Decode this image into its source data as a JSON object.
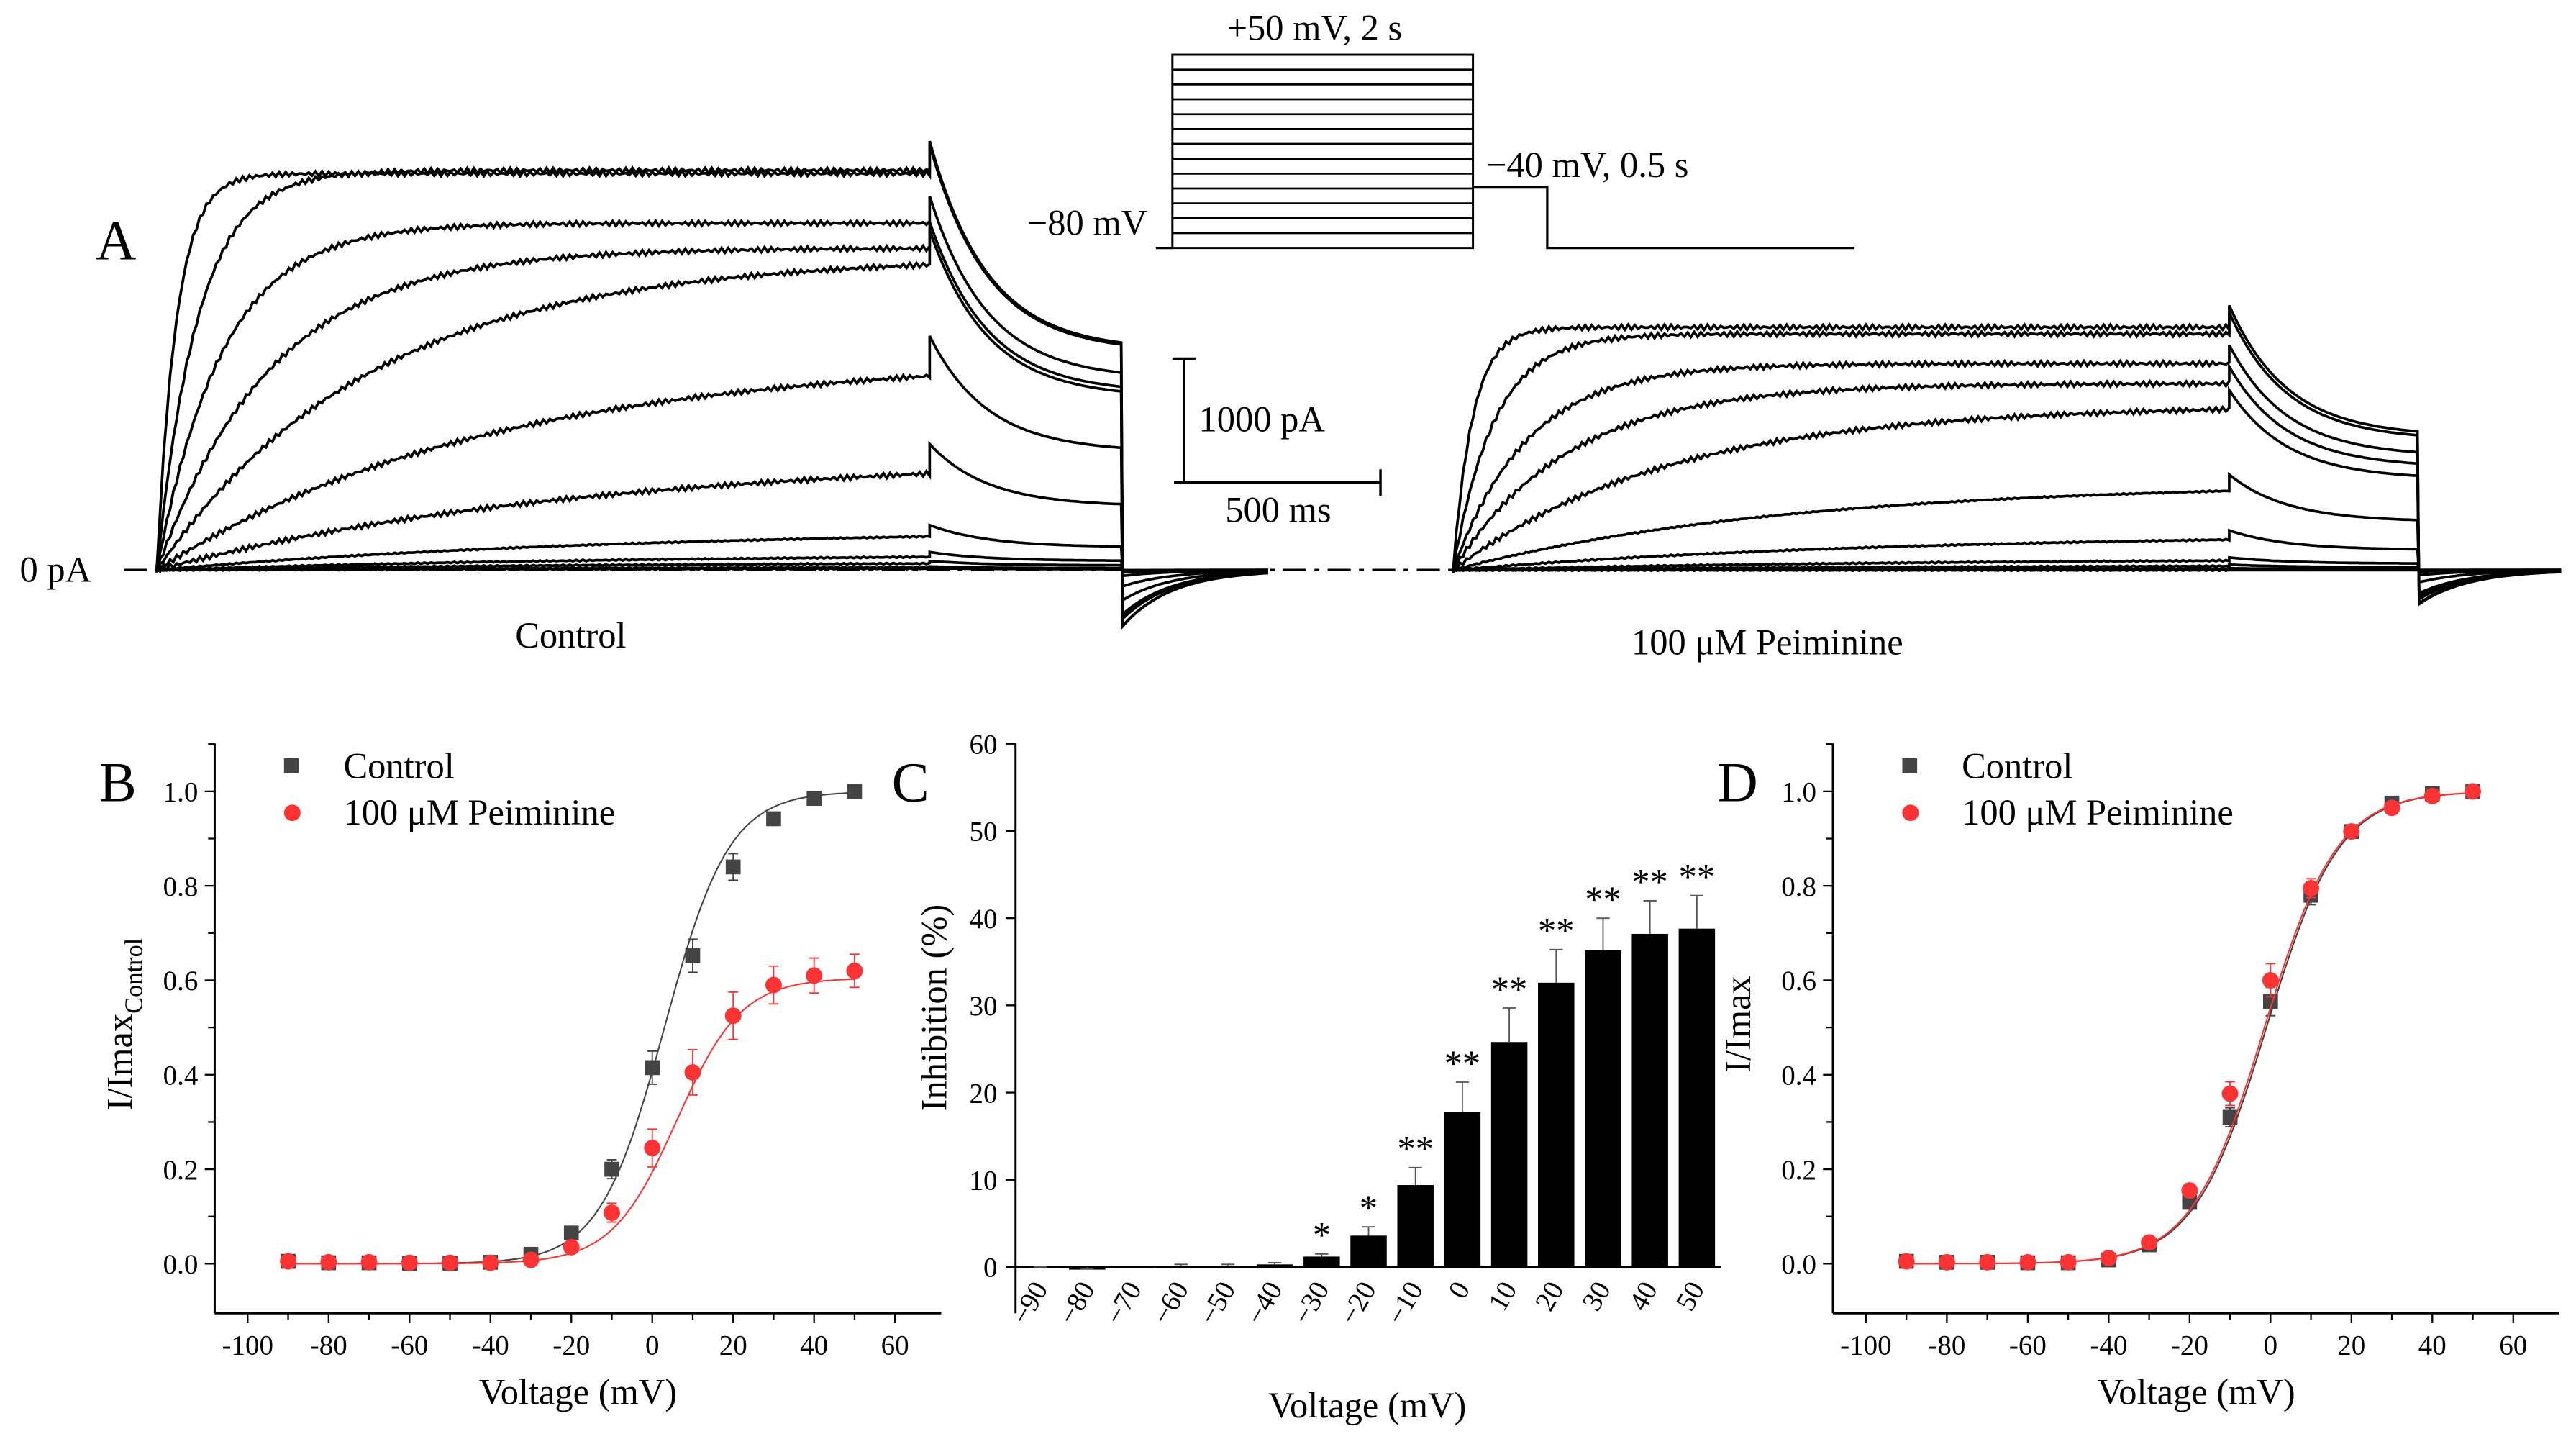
{
  "panel_a": {
    "label": "A",
    "protocol": {
      "step_label": "+50 mV, 2 s",
      "tail_label": "−40 mV, 0.5 s",
      "hold_label": "−80 mV"
    },
    "scale_bar": {
      "current": "1000 pA",
      "time": "500 ms"
    },
    "zero_label": "0 pA",
    "control_label": "Control",
    "drug_label": "100 μM Peiminine"
  },
  "chart_data": [
    {
      "type": "scatter",
      "panel": "B",
      "xlabel": "Voltage (mV)",
      "ylabel": "I/Imax",
      "ylabel_sub": "Control",
      "xlim": [
        -110,
        70
      ],
      "ylim": [
        -0.1,
        1.1
      ],
      "xticks": [
        -100,
        -80,
        -60,
        -40,
        -20,
        0,
        20,
        40,
        60
      ],
      "yticks": [
        "0.0",
        "0.2",
        "0.4",
        "0.6",
        "0.8",
        "1.0"
      ],
      "legend_position": "top-left",
      "x": [
        -90,
        -80,
        -70,
        -60,
        -50,
        -40,
        -30,
        -20,
        -10,
        0,
        10,
        20,
        30,
        40,
        50
      ],
      "series": [
        {
          "name": "Control",
          "color": "#444444",
          "marker": "square",
          "values": [
            0.005,
            0.002,
            0.002,
            0.001,
            0.001,
            0.003,
            0.02,
            0.065,
            0.2,
            0.415,
            0.652,
            0.84,
            0.942,
            0.985,
            1.0
          ],
          "errors": [
            0.005,
            0.003,
            0.003,
            0.003,
            0.003,
            0.004,
            0.006,
            0.012,
            0.02,
            0.035,
            0.035,
            0.028,
            0.012,
            0.006,
            0.004
          ],
          "fit": {
            "max": 1.0,
            "v_half": 3,
            "k": 8
          }
        },
        {
          "name": "100 μM Peiminine",
          "color": "#ff3333",
          "marker": "circle",
          "values": [
            0.005,
            0.003,
            0.003,
            0.002,
            0.002,
            0.002,
            0.008,
            0.035,
            0.108,
            0.245,
            0.405,
            0.525,
            0.59,
            0.61,
            0.62
          ],
          "errors": [
            0.003,
            0.003,
            0.003,
            0.003,
            0.003,
            0.003,
            0.004,
            0.01,
            0.02,
            0.04,
            0.048,
            0.05,
            0.04,
            0.037,
            0.035
          ],
          "fit": {
            "max": 0.605,
            "v_half": 6,
            "k": 8
          }
        }
      ]
    },
    {
      "type": "bar",
      "panel": "C",
      "xlabel": "Voltage (mV)",
      "ylabel": "Inhibition (%)",
      "ylim": [
        -5,
        60
      ],
      "yticks": [
        0,
        10,
        20,
        30,
        40,
        50,
        60
      ],
      "categories": [
        "−90",
        "−80",
        "−70",
        "−60",
        "−50",
        "−40",
        "−30",
        "−20",
        "−10",
        "0",
        "10",
        "20",
        "30",
        "40",
        "50"
      ],
      "values": [
        -0.1,
        -0.3,
        0,
        0.1,
        0.1,
        0.3,
        1.2,
        3.6,
        9.4,
        17.8,
        25.8,
        32.6,
        36.3,
        38.2,
        38.8
      ],
      "errors": [
        0.1,
        0.1,
        0,
        0.2,
        0.2,
        0.2,
        0.3,
        1.0,
        2.0,
        3.4,
        3.9,
        3.8,
        3.7,
        3.8,
        3.8
      ],
      "significance": [
        "",
        "",
        "",
        "",
        "",
        "",
        "*",
        "*",
        "**",
        "**",
        "**",
        "**",
        "**",
        "**",
        "**"
      ],
      "color": "#000000"
    },
    {
      "type": "scatter",
      "panel": "D",
      "xlabel": "Voltage (mV)",
      "ylabel": "I/Imax",
      "xlim": [
        -110,
        70
      ],
      "ylim": [
        -0.1,
        1.1
      ],
      "xticks": [
        -100,
        -80,
        -60,
        -40,
        -20,
        0,
        20,
        40,
        60
      ],
      "yticks": [
        "0.0",
        "0.2",
        "0.4",
        "0.6",
        "0.8",
        "1.0"
      ],
      "legend_position": "top-left",
      "x": [
        -90,
        -80,
        -70,
        -60,
        -50,
        -40,
        -30,
        -20,
        -10,
        0,
        10,
        20,
        30,
        40,
        50
      ],
      "series": [
        {
          "name": "Control",
          "color": "#444444",
          "marker": "square",
          "values": [
            0.005,
            0.003,
            0.003,
            0.002,
            0.002,
            0.008,
            0.04,
            0.13,
            0.31,
            0.555,
            0.78,
            0.915,
            0.975,
            0.995,
            1.0
          ],
          "errors": [
            0.004,
            0.003,
            0.003,
            0.003,
            0.003,
            0.004,
            0.008,
            0.012,
            0.02,
            0.03,
            0.02,
            0.012,
            0.006,
            0.004,
            0.003
          ],
          "fit": {
            "max": 1.0,
            "v_half": -1,
            "k": 9
          }
        },
        {
          "name": "100 μM Peiminine",
          "color": "#ff3333",
          "marker": "circle",
          "values": [
            0.005,
            0.003,
            0.003,
            0.003,
            0.003,
            0.012,
            0.045,
            0.155,
            0.36,
            0.6,
            0.795,
            0.915,
            0.965,
            0.99,
            1.0
          ],
          "errors": [
            0.004,
            0.003,
            0.003,
            0.003,
            0.003,
            0.004,
            0.008,
            0.014,
            0.025,
            0.035,
            0.02,
            0.012,
            0.007,
            0.004,
            0.003
          ],
          "fit": {
            "max": 1.0,
            "v_half": -1.5,
            "k": 9
          }
        }
      ]
    }
  ]
}
